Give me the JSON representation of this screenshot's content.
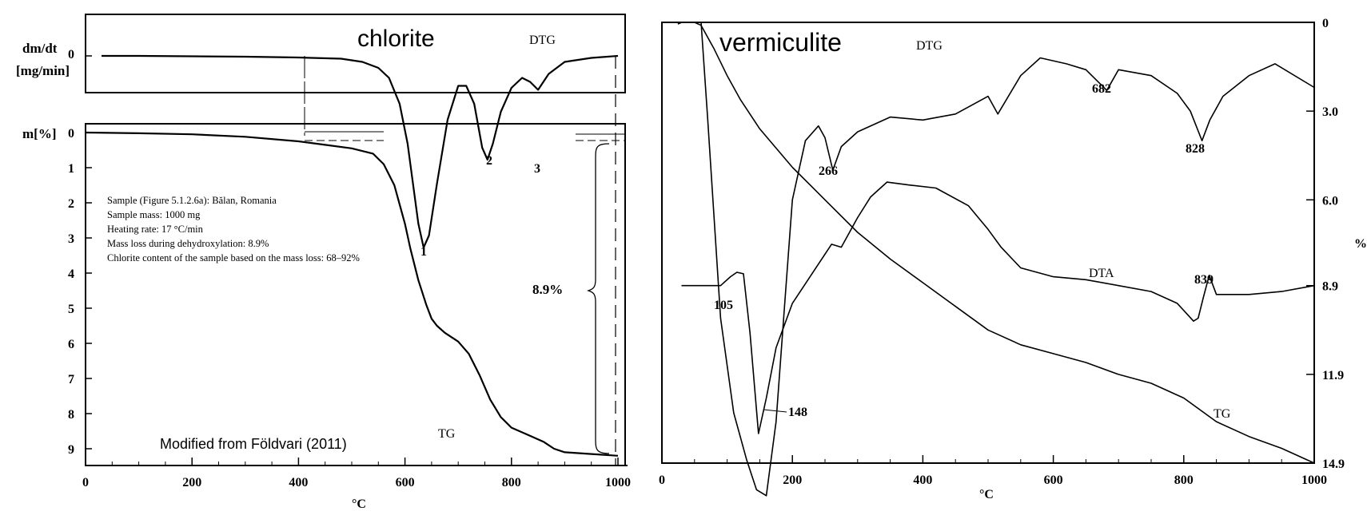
{
  "chart_data": [
    {
      "type": "line",
      "title": "chlorite",
      "credit": "Modified from Földvari (2011)",
      "xlabel": "°C",
      "xlim": [
        0,
        1000
      ],
      "xticks": [
        0,
        200,
        400,
        600,
        800,
        1000
      ],
      "dtg_axis": {
        "label_line1": "dm/dt",
        "label_line2": "[mg/min]",
        "tick_labels": [
          "0"
        ]
      },
      "tg_axis": {
        "label": "m[%]",
        "ylim": [
          0,
          9.4
        ],
        "ticks": [
          0,
          1,
          2,
          3,
          4,
          5,
          6,
          7,
          8,
          9
        ]
      },
      "series": [
        {
          "name": "DTG",
          "x": [
            30,
            100,
            200,
            300,
            400,
            480,
            520,
            550,
            570,
            590,
            605,
            615,
            625,
            635,
            645,
            660,
            680,
            700,
            715,
            730,
            745,
            755,
            765,
            780,
            800,
            820,
            835,
            850,
            870,
            900,
            950,
            1000
          ],
          "y": [
            0,
            0,
            0.01,
            0.02,
            0.04,
            0.07,
            0.15,
            0.3,
            0.55,
            1.2,
            2.2,
            3.2,
            4.2,
            4.8,
            4.5,
            3.2,
            1.6,
            0.75,
            0.75,
            1.2,
            2.3,
            2.6,
            2.2,
            1.4,
            0.8,
            0.55,
            0.65,
            0.85,
            0.45,
            0.15,
            0.05,
            0
          ]
        },
        {
          "name": "TG",
          "x": [
            0,
            100,
            200,
            300,
            400,
            450,
            500,
            540,
            560,
            580,
            600,
            610,
            625,
            640,
            650,
            660,
            675,
            700,
            720,
            740,
            760,
            780,
            800,
            830,
            860,
            880,
            900,
            950,
            1000
          ],
          "y": [
            0,
            0.02,
            0.05,
            0.12,
            0.25,
            0.35,
            0.45,
            0.6,
            0.9,
            1.5,
            2.6,
            3.3,
            4.2,
            4.9,
            5.3,
            5.5,
            5.7,
            5.95,
            6.3,
            6.9,
            7.6,
            8.1,
            8.4,
            8.6,
            8.8,
            9.0,
            9.1,
            9.15,
            9.2
          ]
        }
      ],
      "annotations": {
        "dtg_label": "DTG",
        "tg_label": "TG",
        "peaks": [
          "1",
          "2",
          "3"
        ],
        "mass_loss": "8.9%",
        "info_lines": [
          "Sample (Figure 5.1.2.6a): Bălan, Romania",
          "Sample mass: 1000 mg",
          "Heating rate: 17 °C/min",
          "Mass loss during dehydroxylation: 8.9%",
          "Chlorite content of the sample based on the mass loss: 68–92%"
        ]
      }
    },
    {
      "type": "line",
      "title": "vermiculite",
      "xlabel": "°C",
      "xlim": [
        0,
        1000
      ],
      "xticks": [
        0,
        200,
        400,
        600,
        800,
        1000
      ],
      "y_right": {
        "label": "%",
        "ylim": [
          0,
          14.9
        ],
        "tick_labels": [
          "0",
          "3.0",
          "6.0",
          "8.9",
          "11.9",
          "14.9"
        ]
      },
      "series": [
        {
          "name": "TG",
          "x": [
            30,
            50,
            60,
            80,
            100,
            120,
            150,
            200,
            250,
            300,
            350,
            400,
            450,
            500,
            550,
            600,
            650,
            700,
            750,
            800,
            850,
            900,
            950,
            1000
          ],
          "y": [
            0,
            0,
            0.1,
            0.9,
            1.8,
            2.6,
            3.6,
            4.9,
            6.0,
            7.1,
            8.0,
            8.8,
            9.6,
            10.4,
            10.9,
            11.2,
            11.5,
            11.9,
            12.2,
            12.7,
            13.5,
            14.0,
            14.4,
            14.9
          ]
        },
        {
          "name": "DTG",
          "x": [
            30,
            60,
            70,
            90,
            110,
            130,
            145,
            160,
            175,
            190,
            200,
            220,
            240,
            250,
            262,
            275,
            300,
            350,
            400,
            450,
            500,
            515,
            550,
            580,
            620,
            650,
            682,
            700,
            750,
            790,
            810,
            828,
            840,
            860,
            900,
            940,
            1000
          ],
          "y": [
            0,
            0,
            3.2,
            10.0,
            13.2,
            14.8,
            15.8,
            16.0,
            13.5,
            9.0,
            6.0,
            4.0,
            3.5,
            3.9,
            5.0,
            4.2,
            3.7,
            3.2,
            3.3,
            3.1,
            2.5,
            3.1,
            1.8,
            1.2,
            1.4,
            1.6,
            2.3,
            1.6,
            1.8,
            2.4,
            3.0,
            4.0,
            3.3,
            2.5,
            1.8,
            1.4,
            2.2
          ]
        },
        {
          "name": "DTA",
          "x": [
            30,
            80,
            90,
            105,
            115,
            125,
            135,
            148,
            160,
            175,
            200,
            230,
            260,
            275,
            300,
            320,
            345,
            380,
            420,
            470,
            500,
            520,
            550,
            600,
            650,
            700,
            750,
            790,
            815,
            822,
            830,
            839,
            850,
            900,
            950,
            1000
          ],
          "y": [
            8.9,
            8.9,
            8.9,
            8.6,
            8.45,
            8.5,
            10.5,
            13.9,
            12.7,
            11.0,
            9.5,
            8.5,
            7.5,
            7.6,
            6.6,
            5.9,
            5.4,
            5.5,
            5.6,
            6.2,
            7.0,
            7.6,
            8.3,
            8.6,
            8.7,
            8.9,
            9.1,
            9.5,
            10.1,
            10.0,
            9.3,
            8.55,
            9.2,
            9.2,
            9.1,
            8.9
          ]
        }
      ],
      "annotations": {
        "dtg_label": "DTG",
        "dta_label": "DTA",
        "tg_label": "TG",
        "peaks": [
          "105",
          "148",
          "266",
          "682",
          "828",
          "839"
        ]
      }
    }
  ]
}
